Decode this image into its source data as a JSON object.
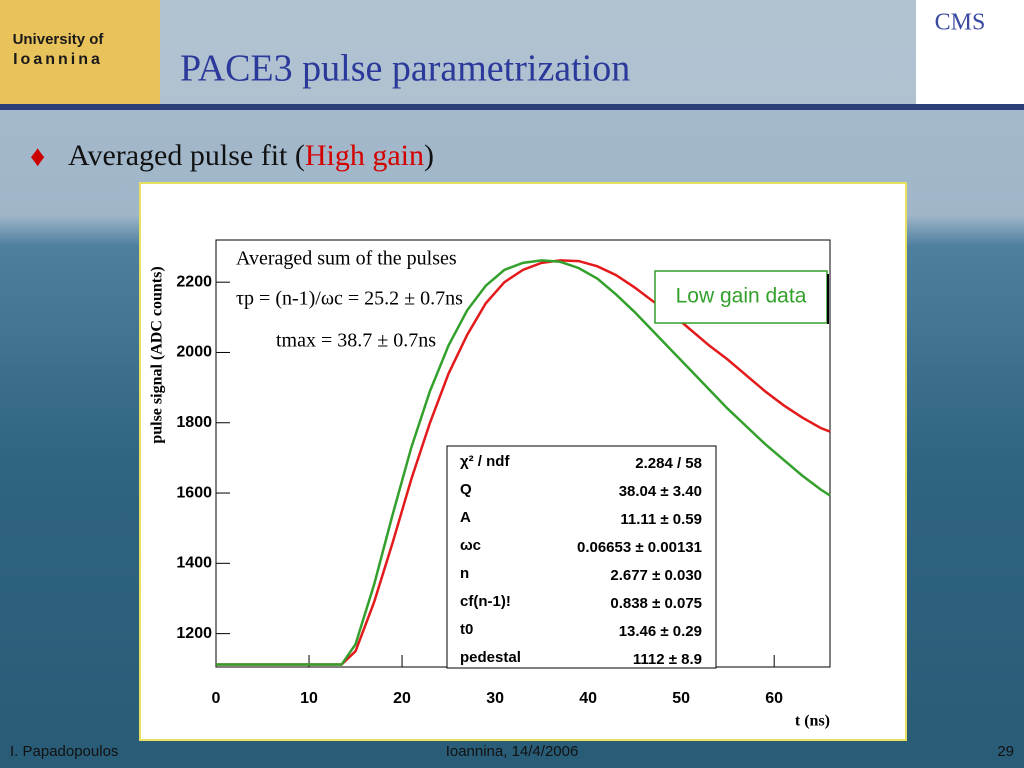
{
  "slide": {
    "logo_line1": "University of",
    "logo_line2": "Ioannina",
    "cms": "CMS",
    "title": "PACE3 pulse parametrization",
    "bullet_before": "Averaged pulse fit (",
    "bullet_highlight": "High gain",
    "bullet_after": ")",
    "footer_left": "I. Papadopoulos",
    "footer_center": "Ioannina, 14/4/2006",
    "footer_right": "29"
  },
  "chart_data": {
    "type": "line",
    "xlabel": "t (ns)",
    "ylabel": "pulse signal (ADC counts)",
    "annotations": [
      "Averaged sum of the pulses",
      "τp = (n-1)/ωc = 25.2 ± 0.7ns",
      "tmax = 38.7 ± 0.7ns"
    ],
    "x": [
      0,
      5,
      10,
      13.5,
      15,
      17,
      19,
      21,
      23,
      25,
      27,
      29,
      31,
      33,
      35,
      37,
      39,
      41,
      43,
      45,
      47,
      49,
      51,
      53,
      55,
      57,
      59,
      61,
      63,
      65,
      66
    ],
    "series": [
      {
        "color": "#e31a1c",
        "values": [
          1112,
          1112,
          1112,
          1112,
          1150,
          1290,
          1460,
          1640,
          1800,
          1940,
          2050,
          2140,
          2200,
          2235,
          2255,
          2262,
          2260,
          2245,
          2220,
          2185,
          2145,
          2110,
          2065,
          2020,
          1980,
          1935,
          1890,
          1850,
          1815,
          1785,
          1775
        ]
      },
      {
        "name": "Low gain data",
        "color": "#33a02c",
        "values": [
          1112,
          1112,
          1112,
          1112,
          1170,
          1340,
          1540,
          1730,
          1890,
          2020,
          2120,
          2190,
          2235,
          2255,
          2262,
          2258,
          2240,
          2210,
          2165,
          2115,
          2060,
          2005,
          1950,
          1895,
          1840,
          1790,
          1740,
          1695,
          1650,
          1610,
          1593
        ]
      }
    ],
    "xlim": [
      0,
      66
    ],
    "xticks": [
      0,
      10,
      20,
      30,
      40,
      50,
      60
    ],
    "ylim": [
      1105,
      2320
    ],
    "yticks": [
      1200,
      1400,
      1600,
      1800,
      2000,
      2200
    ],
    "legend": "upper right",
    "stats": [
      {
        "label": "χ² / ndf",
        "value": "2.284 / 58"
      },
      {
        "label": "Q",
        "value": "38.04 ± 3.40"
      },
      {
        "label": "A",
        "value": "11.11 ± 0.59"
      },
      {
        "label": "ωc",
        "value": "0.06653 ± 0.00131"
      },
      {
        "label": "n",
        "value": "2.677 ± 0.030"
      },
      {
        "label": "cf(n-1)!",
        "value": "0.838 ± 0.075"
      },
      {
        "label": "t0",
        "value": "13.46 ± 0.29"
      },
      {
        "label": "pedestal",
        "value": "1112 ± 8.9"
      }
    ]
  }
}
